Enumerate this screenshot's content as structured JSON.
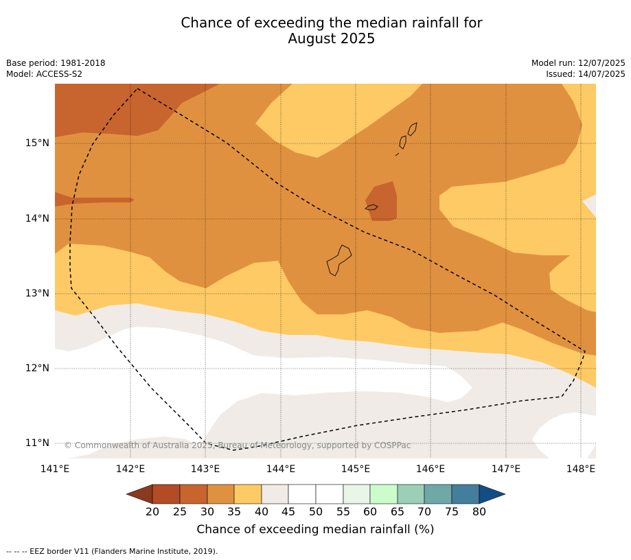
{
  "title": {
    "line1": "Chance of exceeding the median rainfall for",
    "line2": "August 2025"
  },
  "meta": {
    "base_period": "Base period: 1981-2018",
    "model": "Model: ACCESS-S2",
    "model_run": "Model run: 12/07/2025",
    "issued": "Issued: 14/07/2025"
  },
  "map": {
    "lon_ticks": [
      "141°E",
      "142°E",
      "143°E",
      "144°E",
      "145°E",
      "146°E",
      "147°E",
      "148°E"
    ],
    "lat_ticks": [
      "15°N",
      "14°N",
      "13°N",
      "12°N",
      "11°N"
    ],
    "copyright": "© Commonwealth of Australia 2025, Bureau of Meteorology, supported by COSPPac"
  },
  "colorbar": {
    "ticks": [
      "20",
      "25",
      "30",
      "35",
      "40",
      "45",
      "50",
      "55",
      "60",
      "65",
      "70",
      "75",
      "80"
    ],
    "colors": {
      "lt20": "#8b3a1f",
      "20_25": "#b24b26",
      "25_30": "#c8642e",
      "30_35": "#e0913f",
      "35_40": "#fdca65",
      "40_45": "#f0ebe6",
      "45_50": "#ffffff",
      "50_55": "#ffffff",
      "55_60": "#e8f5e8",
      "60_65": "#ccfccc",
      "65_70": "#9ccfb8",
      "70_75": "#70a8a8",
      "75_80": "#447e9c",
      "gt80": "#144d84"
    },
    "label": "Chance of exceeding median rainfall (%)"
  },
  "legend": {
    "eez_text": "--  --  -- EEZ border V11 (Flanders Marine Institute, 2019)."
  }
}
